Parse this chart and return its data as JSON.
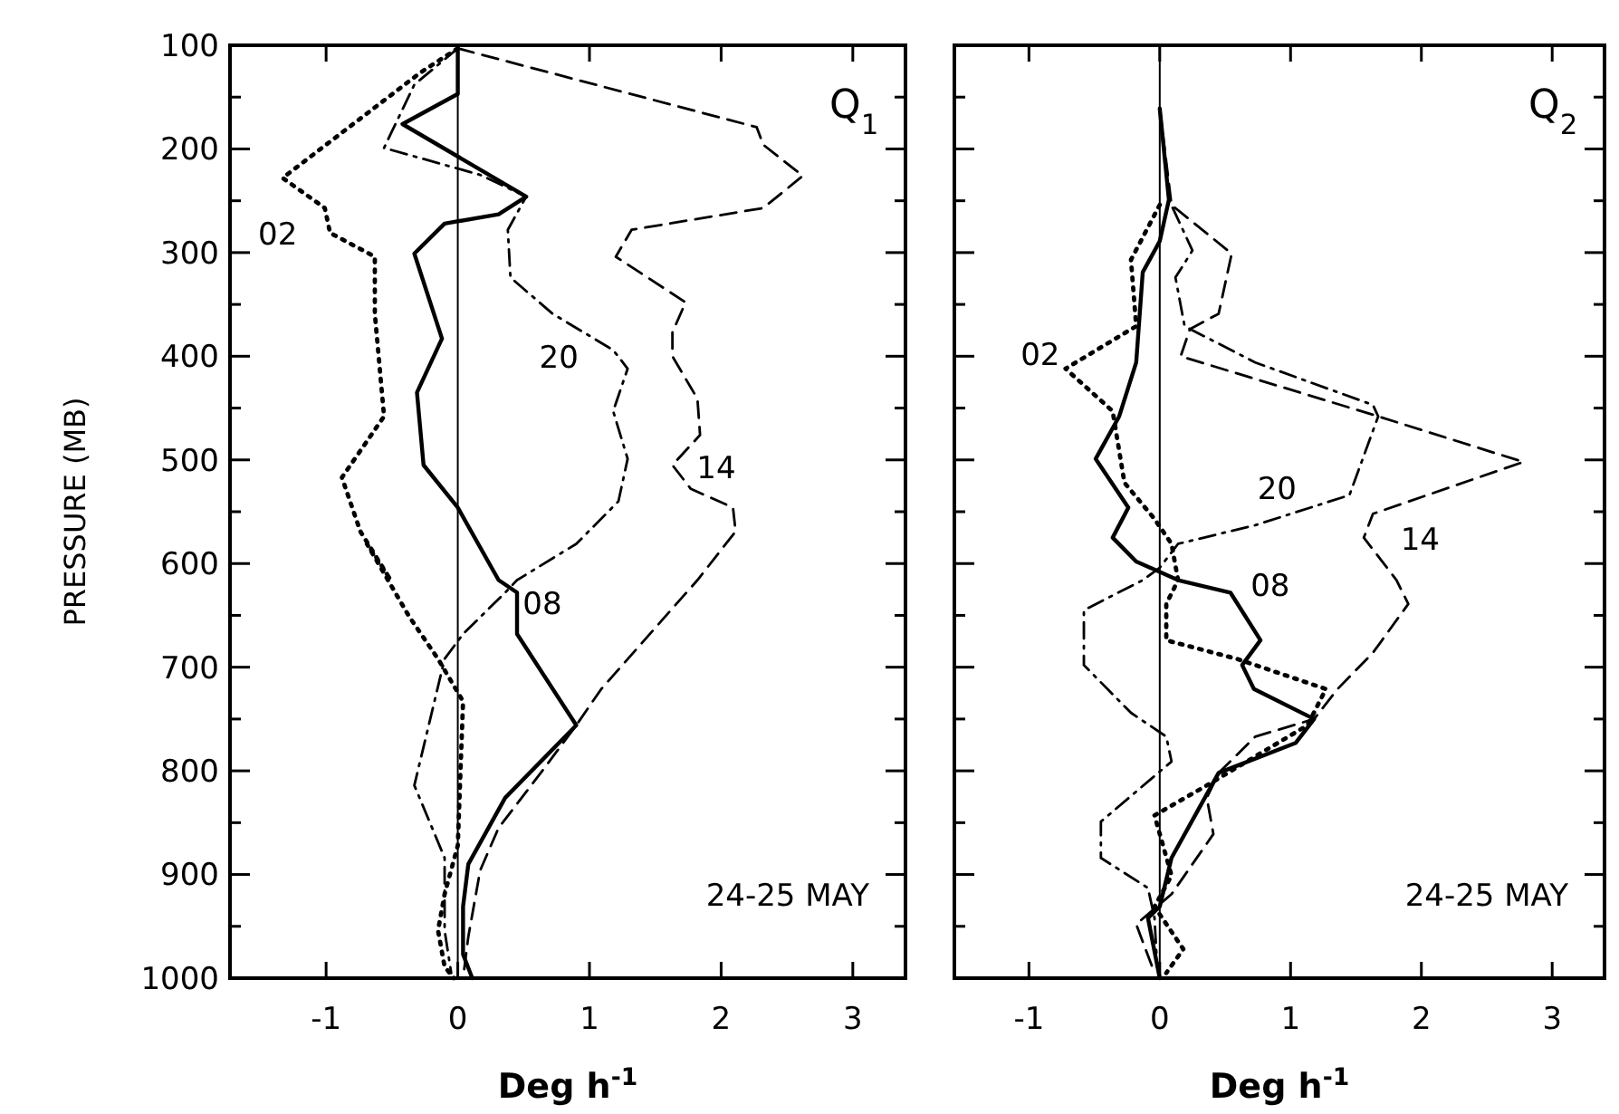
{
  "chart_data": [
    {
      "type": "line",
      "title": "Q$_{1}$",
      "ylabel": "PRESSURE (MB)",
      "xlabel": "Deg h$^{-1}$",
      "xlim": [
        -1.73,
        3.4
      ],
      "xticks": [
        -1,
        0,
        1,
        2,
        3
      ],
      "ylim": [
        1000,
        100
      ],
      "yticks": [
        100,
        {
          "value": 150,
          "label": null
        },
        200,
        {
          "value": 250,
          "label": null
        },
        300,
        {
          "value": 350,
          "label": null
        },
        400,
        {
          "value": 450,
          "label": null
        },
        500,
        {
          "value": 550,
          "label": null
        },
        600,
        {
          "value": 650,
          "label": null
        },
        700,
        {
          "value": 750,
          "label": null
        },
        800,
        {
          "value": 850,
          "label": null
        },
        900,
        {
          "value": 950,
          "label": null
        },
        1000
      ],
      "grid": false,
      "annotations": [
        "24-25 MAY"
      ],
      "ref_lines": [
        {
          "axis": "x",
          "value": 0,
          "color": "#000000"
        }
      ],
      "series": [
        {
          "name": "02",
          "color": "#000000",
          "line_style": "dotted",
          "x": [
            0,
            -0.28,
            -1.33,
            -1.01,
            -0.97,
            -0.63,
            -0.63,
            -0.56,
            -0.88,
            -0.74,
            -0.51,
            -0.69,
            -0.37,
            -0.15,
            0.04,
            0,
            -0.1,
            -0.15,
            -0.1,
            -0.03
          ],
          "values": [
            103,
            126,
            228,
            257,
            281,
            304,
            359,
            458,
            517,
            569,
            616,
            581,
            651,
            692,
            733,
            872,
            919,
            954,
            989,
            1000
          ]
        },
        {
          "name": "08",
          "color": "#000000",
          "line_style": "solid",
          "x": [
            0,
            0,
            -0.42,
            0.52,
            0.31,
            -0.1,
            -0.33,
            -0.12,
            -0.31,
            -0.26,
            0,
            0.31,
            0.45,
            0.45,
            0.9,
            0.36,
            0.08,
            0.04,
            0.04,
            0.11
          ],
          "values": [
            103,
            147,
            176,
            246,
            263,
            272,
            301,
            383,
            435,
            505,
            546,
            616,
            628,
            668,
            756,
            826,
            890,
            931,
            977,
            1000
          ]
        },
        {
          "name": "14",
          "color": "#000000",
          "line_style": "dashed",
          "x": [
            0,
            2.27,
            2.32,
            2.62,
            2.32,
            1.32,
            1.2,
            1.73,
            1.63,
            1.63,
            1.82,
            1.84,
            1.63,
            1.77,
            2.09,
            2.11,
            1.82,
            1.09,
            0.9,
            0.63,
            0.31,
            0.17,
            0.08,
            0.04
          ],
          "values": [
            103,
            179,
            196,
            226,
            257,
            278,
            304,
            348,
            377,
            400,
            441,
            476,
            505,
            528,
            546,
            569,
            616,
            721,
            756,
            802,
            855,
            896,
            960,
            1000
          ]
        },
        {
          "name": "20",
          "color": "#000000",
          "line_style": "dashdot",
          "x": [
            0,
            -0.33,
            -0.56,
            0.17,
            0.52,
            0.38,
            0.4,
            0.72,
            1.18,
            1.29,
            1.18,
            1.29,
            1.22,
            0.9,
            0.45,
            0.36,
            0.04,
            -0.1,
            -0.33,
            -0.1,
            -0.1,
            -0.05
          ],
          "values": [
            103,
            138,
            199,
            225,
            246,
            278,
            324,
            359,
            394,
            412,
            453,
            499,
            540,
            581,
            616,
            628,
            668,
            692,
            814,
            884,
            954,
            995
          ]
        }
      ]
    },
    {
      "type": "line",
      "title": "Q$_{2}$",
      "xlabel": "Deg h$^{-1}$",
      "xlim": [
        -1.57,
        3.4
      ],
      "xticks": [
        -1,
        0,
        1,
        2,
        3
      ],
      "ylim": [
        1000,
        100
      ],
      "yticks": [
        100,
        {
          "value": 150,
          "label": null
        },
        200,
        {
          "value": 250,
          "label": null
        },
        300,
        {
          "value": 350,
          "label": null
        },
        400,
        {
          "value": 450,
          "label": null
        },
        500,
        {
          "value": 550,
          "label": null
        },
        600,
        {
          "value": 650,
          "label": null
        },
        700,
        {
          "value": 750,
          "label": null
        },
        800,
        {
          "value": 850,
          "label": null
        },
        900,
        {
          "value": 950,
          "label": null
        },
        1000
      ],
      "tick_labels": "x",
      "grid": false,
      "annotations": [
        "24-25 MAY"
      ],
      "ref_lines": [
        {
          "axis": "x",
          "value": 0,
          "color": "#000000"
        }
      ],
      "series": [
        {
          "name": "02",
          "color": "#000000",
          "line_style": "dotted",
          "x": [
            0,
            -0.22,
            -0.18,
            -0.72,
            -0.36,
            -0.27,
            -0.04,
            0.09,
            0.14,
            0.05,
            0.05,
            0.59,
            1.27,
            1.13,
            0.36,
            -0.04,
            0.09,
            -0.04,
            0.18,
            0.05
          ],
          "values": [
            254,
            307,
            371,
            412,
            453,
            522,
            557,
            581,
            616,
            639,
            674,
            692,
            721,
            756,
            814,
            843,
            901,
            931,
            972,
            995
          ]
        },
        {
          "name": "08",
          "color": "#000000",
          "line_style": "solid",
          "x": [
            0,
            0.07,
            0,
            -0.13,
            -0.18,
            -0.31,
            -0.49,
            -0.24,
            -0.36,
            -0.18,
            0.14,
            0.54,
            0.77,
            0.63,
            0.72,
            1.18,
            1.04,
            0.45,
            0.27,
            0.09,
            0,
            -0.09,
            0
          ],
          "values": [
            161,
            249,
            289,
            319,
            406,
            458,
            499,
            546,
            575,
            598,
            616,
            628,
            674,
            698,
            721,
            750,
            773,
            802,
            843,
            884,
            931,
            942,
            1000
          ]
        },
        {
          "name": "14",
          "color": "#000000",
          "line_style": "dashed",
          "x": [
            0,
            0.09,
            0.55,
            0.45,
            0.23,
            0.16,
            1.67,
            2.78,
            1.63,
            1.56,
            1.81,
            1.9,
            1.63,
            1.36,
            1.18,
            0.73,
            0.45,
            0.36,
            0.41,
            0.09,
            -0.18,
            -0.04
          ],
          "values": [
            161,
            254,
            301,
            359,
            374,
            400,
            458,
            502,
            552,
            575,
            616,
            639,
            686,
            721,
            750,
            767,
            802,
            826,
            861,
            919,
            948,
            995
          ]
        },
        {
          "name": "20",
          "color": "#000000",
          "line_style": "dashdot",
          "x": [
            0,
            0.07,
            0.25,
            0.12,
            0.19,
            0.73,
            1.63,
            1.67,
            1.45,
            0.73,
            0.14,
            0,
            -0.13,
            -0.58,
            -0.58,
            -0.22,
            0.05,
            0.09,
            -0.45,
            -0.45,
            -0.09,
            -0.04,
            -0.02
          ],
          "values": [
            161,
            249,
            298,
            324,
            371,
            406,
            447,
            458,
            534,
            563,
            581,
            604,
            616,
            645,
            698,
            744,
            767,
            791,
            849,
            884,
            913,
            942,
            989
          ]
        }
      ]
    }
  ]
}
